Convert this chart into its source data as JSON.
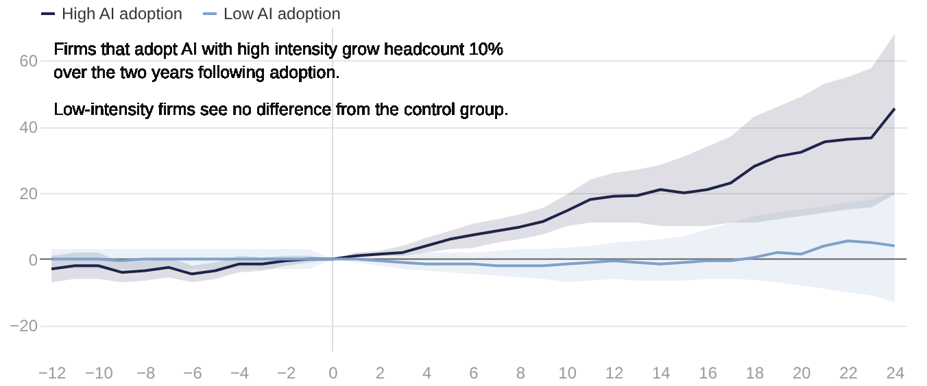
{
  "chart_data": {
    "type": "line",
    "x": [
      -12,
      -11,
      -10,
      -9,
      -8,
      -7,
      -6,
      -5,
      -4,
      -3,
      -2,
      -1,
      0,
      1,
      2,
      3,
      4,
      5,
      6,
      7,
      8,
      9,
      10,
      11,
      12,
      13,
      14,
      15,
      16,
      17,
      18,
      19,
      20,
      21,
      22,
      23,
      24
    ],
    "series": [
      {
        "name": "High AI adoption",
        "color": "#1f2448",
        "values": [
          -3,
          -2,
          -2,
          -4,
          -3.5,
          -2.5,
          -4.5,
          -3.5,
          -1.5,
          -1.5,
          -0.5,
          0,
          0,
          1,
          1.5,
          2,
          4,
          6,
          7.3,
          8.5,
          9.7,
          11.4,
          14.6,
          18,
          19,
          19.2,
          21,
          20,
          21,
          23,
          28,
          31,
          32.3,
          35.4,
          36.2,
          36.6,
          45.5
        ],
        "lower": [
          -7,
          -6,
          -6,
          -7,
          -6.5,
          -5.5,
          -7,
          -6,
          -4,
          -3.5,
          -2,
          -1,
          0,
          0.5,
          1,
          1,
          2,
          3,
          3.4,
          5,
          6,
          7.5,
          10,
          11,
          11,
          11,
          10,
          10,
          10,
          11,
          11,
          12,
          13,
          14,
          15,
          15.6,
          19.5
        ],
        "upper": [
          1,
          2,
          2,
          -1,
          -0.5,
          0.5,
          -2,
          -1,
          1,
          0.5,
          1,
          1,
          0,
          2,
          2.5,
          4,
          6.5,
          8.5,
          10.7,
          12,
          13.5,
          15.5,
          19.5,
          24,
          26,
          27,
          28.5,
          31,
          34,
          37,
          43,
          46,
          49,
          53,
          55,
          57.7,
          68
        ]
      },
      {
        "name": "Low AI adoption",
        "color": "#7fa1c9",
        "values": [
          0,
          0,
          0,
          -0.5,
          0,
          0,
          0,
          0,
          0,
          0,
          0,
          0,
          0,
          0,
          -0.5,
          -1,
          -1.5,
          -1.5,
          -1.5,
          -2,
          -2,
          -2,
          -1.5,
          -1,
          -0.5,
          -1,
          -1.5,
          -1,
          -0.5,
          -0.5,
          0.5,
          2,
          1.5,
          4,
          5.5,
          5,
          4
        ],
        "lower": [
          -3,
          -3,
          -3,
          -3,
          -3,
          -3,
          -3,
          -3,
          -3,
          -3,
          -3,
          -3,
          0,
          -1,
          -2,
          -3,
          -3.5,
          -4,
          -4.5,
          -5,
          -5.5,
          -6,
          -7,
          -6.5,
          -6,
          -6.5,
          -6.5,
          -6.5,
          -6,
          -6,
          -6.3,
          -7,
          -8,
          -9,
          -10,
          -11,
          -13
        ],
        "upper": [
          3,
          3,
          3,
          3,
          3,
          3,
          3,
          3,
          3,
          3,
          3,
          3,
          0,
          1,
          1.5,
          1.5,
          2,
          2,
          2,
          2.5,
          3,
          3,
          3.5,
          4,
          5,
          5.5,
          6,
          7,
          9,
          11,
          13,
          14,
          15,
          16,
          17,
          18,
          20.5
        ]
      }
    ],
    "xlim": [
      -12.5,
      24.5
    ],
    "xticks": [
      -12,
      -10,
      -8,
      -6,
      -4,
      -2,
      0,
      2,
      4,
      6,
      8,
      10,
      12,
      14,
      16,
      18,
      20,
      22,
      24
    ],
    "ylim": [
      -28,
      70
    ],
    "yticks": [
      -20,
      0,
      20,
      40,
      60
    ],
    "ref_lines": [
      {
        "axis": "x",
        "value": 0,
        "color": "#dddddd"
      },
      {
        "axis": "y",
        "value": 0,
        "color": "#666666"
      }
    ],
    "annotations": [
      "Firms that adopt AI with high intensity grow headcount 10% over the two years following adoption.",
      "Low-intensity firms see no difference from the control group."
    ],
    "grid": "y",
    "legend": "top left",
    "marker": "none",
    "line_style": "solid"
  }
}
